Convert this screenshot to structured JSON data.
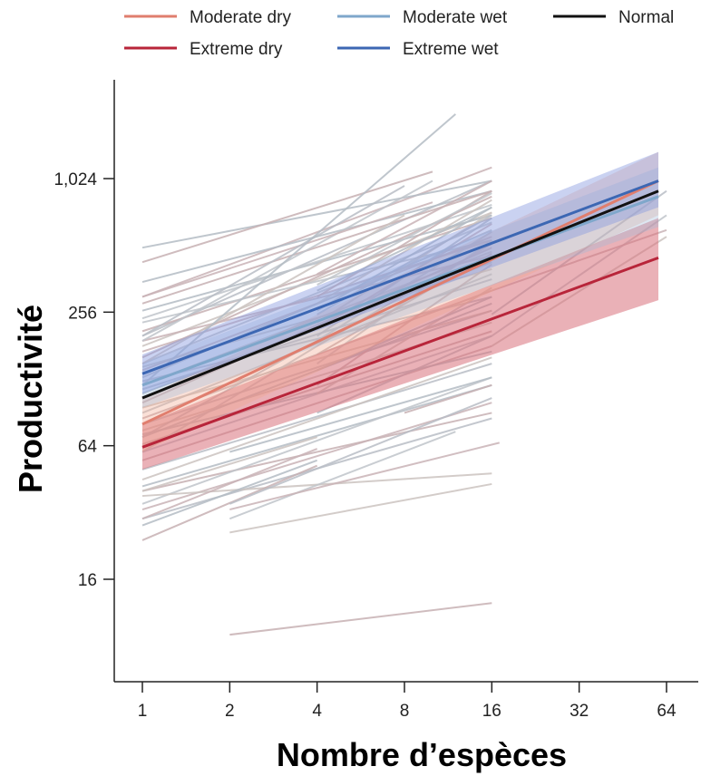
{
  "chart_data": {
    "type": "line",
    "xlabel": "Nombre d’espèces",
    "ylabel": "Productivité",
    "x_scale": "log2",
    "y_scale": "log2",
    "x_ticks": [
      1,
      2,
      4,
      8,
      16,
      32,
      64
    ],
    "x_tick_labels": [
      "1",
      "2",
      "4",
      "8",
      "16",
      "32",
      "64"
    ],
    "y_ticks": [
      16,
      64,
      256,
      1024
    ],
    "y_tick_labels": [
      "16",
      "64",
      "256",
      "1,024"
    ],
    "xlim": [
      0.85,
      80
    ],
    "ylim": [
      7.3,
      2800
    ],
    "grid": false,
    "legend_position": "top",
    "series": [
      {
        "name": "Moderate dry",
        "color": "#e07e6e",
        "x": [
          1,
          60
        ],
        "y": [
          80,
          1000
        ],
        "band_lower": [
          60,
          700
        ],
        "band_upper": [
          105,
          1350
        ]
      },
      {
        "name": "Moderate wet",
        "color": "#7fa7cb",
        "x": [
          1,
          60
        ],
        "y": [
          120,
          850
        ],
        "band_lower": [
          95,
          620
        ],
        "band_upper": [
          150,
          1150
        ]
      },
      {
        "name": "Normal",
        "color": "#111111",
        "x": [
          1,
          60
        ],
        "y": [
          105,
          900
        ]
      },
      {
        "name": "Extreme dry",
        "color": "#b8253a",
        "x": [
          1,
          60
        ],
        "y": [
          63,
          450
        ],
        "band_lower": [
          50,
          290
        ],
        "band_upper": [
          80,
          680
        ]
      },
      {
        "name": "Extreme wet",
        "color": "#3c67b3",
        "x": [
          1,
          60
        ],
        "y": [
          135,
          1000
        ],
        "band_lower": [
          110,
          760
        ],
        "band_upper": [
          165,
          1350
        ]
      }
    ],
    "site_lines": [
      [
        1,
        16,
        300,
        1150
      ],
      [
        1,
        16,
        200,
        1000
      ],
      [
        1,
        16,
        180,
        720
      ],
      [
        1,
        16,
        500,
        1000
      ],
      [
        1,
        16,
        160,
        850
      ],
      [
        1,
        16,
        150,
        650
      ],
      [
        1,
        16,
        140,
        560
      ],
      [
        1,
        16,
        130,
        600
      ],
      [
        1,
        16,
        120,
        480
      ],
      [
        1,
        16,
        110,
        430
      ],
      [
        1,
        16,
        100,
        500
      ],
      [
        1,
        16,
        90,
        380
      ],
      [
        1,
        16,
        85,
        320
      ],
      [
        1,
        16,
        80,
        260
      ],
      [
        1,
        16,
        75,
        230
      ],
      [
        1,
        16,
        70,
        280
      ],
      [
        1,
        16,
        65,
        210
      ],
      [
        1,
        16,
        60,
        200
      ],
      [
        1,
        16,
        55,
        180
      ],
      [
        1,
        16,
        50,
        150
      ],
      [
        1,
        16,
        45,
        160
      ],
      [
        1,
        16,
        42,
        120
      ],
      [
        1,
        16,
        40,
        90
      ],
      [
        1,
        16,
        35,
        130
      ],
      [
        1,
        16,
        33,
        100
      ],
      [
        1,
        16,
        30,
        85
      ],
      [
        1,
        16,
        38,
        48
      ],
      [
        1,
        16,
        260,
        700
      ],
      [
        1,
        16,
        210,
        680
      ],
      [
        1,
        16,
        230,
        540
      ],
      [
        1,
        16,
        170,
        540
      ],
      [
        1,
        16,
        125,
        300
      ],
      [
        1,
        16,
        95,
        260
      ],
      [
        1,
        16,
        350,
        900
      ],
      [
        1,
        16,
        280,
        900
      ],
      [
        1,
        16,
        240,
        780
      ],
      [
        1,
        16,
        190,
        460
      ],
      [
        1,
        16,
        115,
        360
      ],
      [
        1,
        16,
        145,
        400
      ],
      [
        1,
        16,
        72,
        170
      ],
      [
        1,
        10,
        430,
        1100
      ],
      [
        1,
        10,
        190,
        1000
      ],
      [
        1,
        10,
        300,
        800
      ],
      [
        1,
        8,
        200,
        950
      ],
      [
        1,
        8,
        150,
        700
      ],
      [
        1,
        12,
        120,
        2000
      ],
      [
        1,
        4,
        24,
        52
      ],
      [
        1,
        4,
        60,
        180
      ],
      [
        1,
        4,
        30,
        62
      ],
      [
        1,
        4,
        70,
        190
      ],
      [
        1,
        4,
        40,
        70
      ],
      [
        1,
        4,
        28,
        55
      ],
      [
        2,
        16,
        9,
        12.5
      ],
      [
        2,
        12,
        30,
        74
      ],
      [
        2,
        17,
        33,
        66
      ],
      [
        2,
        16,
        35,
        105
      ],
      [
        2,
        16,
        26,
        43
      ],
      [
        2,
        16,
        60,
        130
      ],
      [
        4,
        16,
        120,
        420
      ],
      [
        4,
        16,
        150,
        540
      ],
      [
        4,
        16,
        180,
        520
      ],
      [
        4,
        16,
        200,
        680
      ],
      [
        4,
        16,
        230,
        720
      ],
      [
        4,
        16,
        260,
        760
      ],
      [
        4,
        16,
        300,
        900
      ],
      [
        4,
        16,
        340,
        880
      ],
      [
        4,
        16,
        380,
        1000
      ],
      [
        4,
        16,
        90,
        200
      ],
      [
        4,
        16,
        110,
        330
      ],
      [
        4,
        16,
        140,
        300
      ],
      [
        4,
        16,
        165,
        470
      ],
      [
        4,
        16,
        190,
        590
      ],
      [
        4,
        16,
        215,
        640
      ],
      [
        4,
        16,
        250,
        700
      ],
      [
        4,
        16,
        280,
        820
      ],
      [
        4,
        16,
        320,
        760
      ],
      [
        8,
        16,
        90,
        120
      ],
      [
        16,
        64,
        200,
        700
      ],
      [
        16,
        64,
        320,
        600
      ],
      [
        16,
        64,
        250,
        900
      ],
      [
        16,
        64,
        180,
        560
      ]
    ]
  }
}
